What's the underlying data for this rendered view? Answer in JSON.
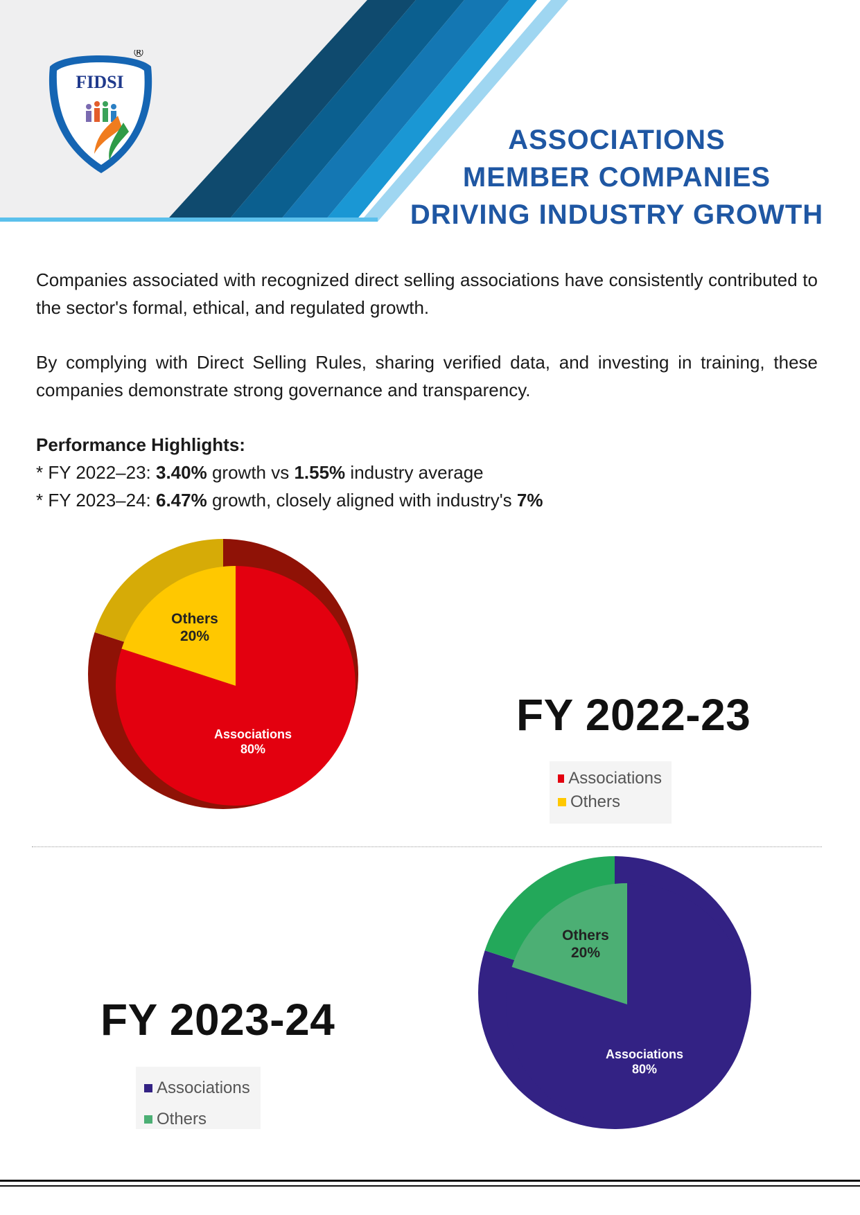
{
  "header": {
    "logo_text": "FIDSI",
    "registered_mark": "®",
    "title_lines": [
      "ASSOCIATIONS",
      "MEMBER COMPANIES",
      "DRIVING INDUSTRY GROWTH"
    ]
  },
  "body": {
    "paragraph1": "Companies associated with recognized direct selling associations have consistently contributed to the sector's formal, ethical, and regulated growth.",
    "paragraph2": "By complying with Direct Selling Rules, sharing verified data, and investing in training, these companies demonstrate strong governance and transparency.",
    "highlights_title": "Performance Highlights:",
    "highlight1": {
      "prefix": "* FY 2022–23: ",
      "value1": "3.40%",
      "mid": " growth vs ",
      "value2": "1.55%",
      "suffix": " industry average"
    },
    "highlight2": {
      "prefix": "* FY 2023–24: ",
      "value1": "6.47%",
      "mid": " growth, closely aligned with industry's ",
      "value2": "7%"
    }
  },
  "chart_data": [
    {
      "type": "pie",
      "title": "FY 2022-23",
      "categories": [
        "Associations",
        "Others"
      ],
      "values": [
        80,
        20
      ],
      "slice_labels": [
        {
          "name": "Associations",
          "pct": "80%"
        },
        {
          "name": "Others",
          "pct": "20%"
        }
      ],
      "colors": [
        "#e3000f",
        "#ffc800"
      ],
      "legend": [
        "Associations",
        "Others"
      ],
      "legend_position": "right"
    },
    {
      "type": "pie",
      "title": "FY 2023-24",
      "categories": [
        "Associations",
        "Others"
      ],
      "values": [
        80,
        20
      ],
      "slice_labels": [
        {
          "name": "Associations",
          "pct": "80%"
        },
        {
          "name": "Others",
          "pct": "20%"
        }
      ],
      "colors": [
        "#332284",
        "#4caf74"
      ],
      "legend": [
        "Associations",
        "Others"
      ],
      "legend_position": "left"
    }
  ]
}
